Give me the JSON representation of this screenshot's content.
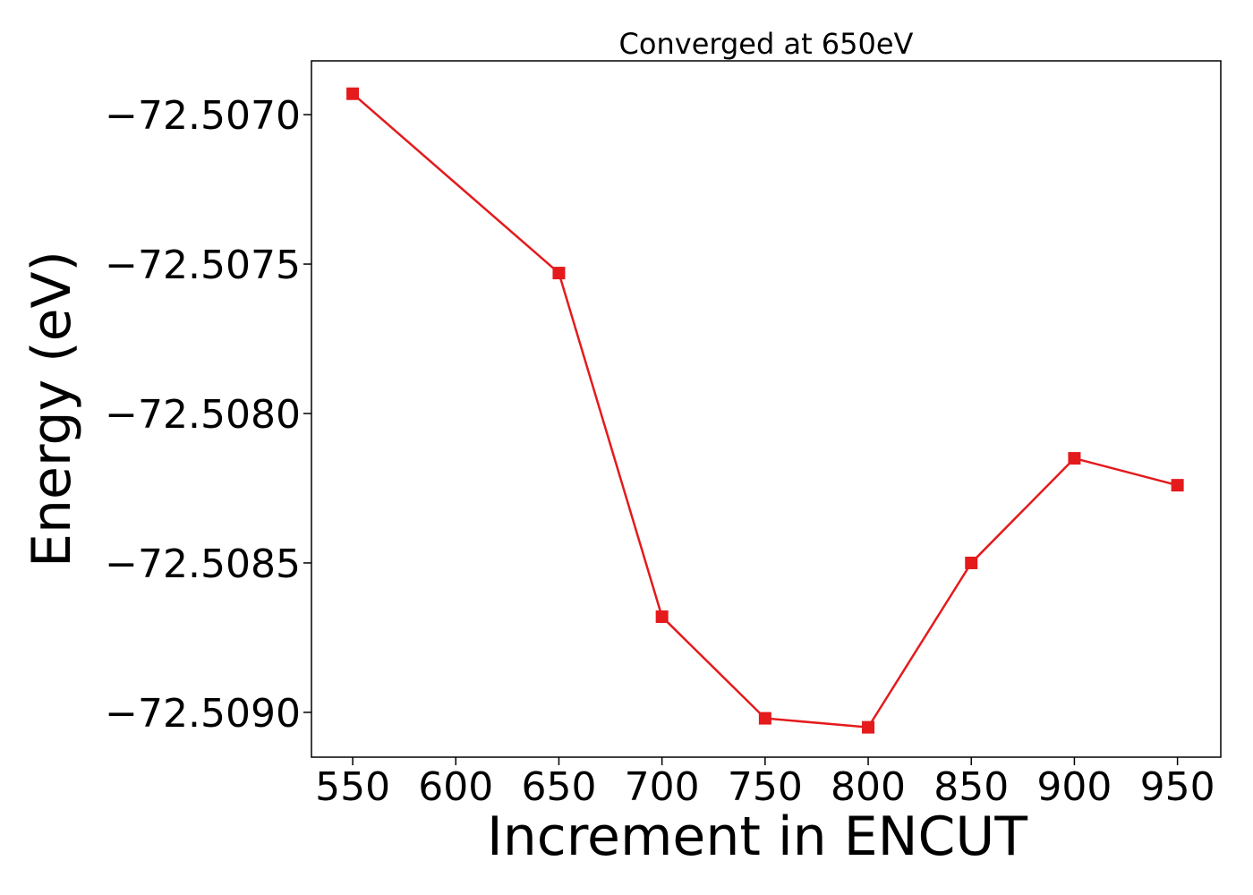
{
  "chart_data": {
    "type": "line",
    "title": "Converged at 650eV",
    "xlabel": "Increment in ENCUT",
    "ylabel": "Energy (eV)",
    "x": [
      550,
      650,
      700,
      750,
      800,
      850,
      900,
      950
    ],
    "series": [
      {
        "values": [
          -72.50693,
          -72.50753,
          -72.50868,
          -72.50902,
          -72.50905,
          -72.5085,
          -72.50815,
          -72.50824
        ],
        "color": "#e41a1c",
        "marker": "square"
      }
    ],
    "xlim": [
      530,
      971
    ],
    "ylim": [
      -72.50915,
      -72.50682
    ],
    "xticks": [
      550,
      600,
      650,
      700,
      750,
      800,
      850,
      900,
      950
    ],
    "xtick_labels": [
      "550",
      "600",
      "650",
      "700",
      "750",
      "800",
      "850",
      "900",
      "950"
    ],
    "yticks": [
      -72.507,
      -72.5075,
      -72.508,
      -72.5085,
      -72.509
    ],
    "ytick_labels": [
      "−72.5070",
      "−72.5075",
      "−72.5080",
      "−72.5085",
      "−72.5090"
    ],
    "grid": false,
    "legend": "none"
  }
}
